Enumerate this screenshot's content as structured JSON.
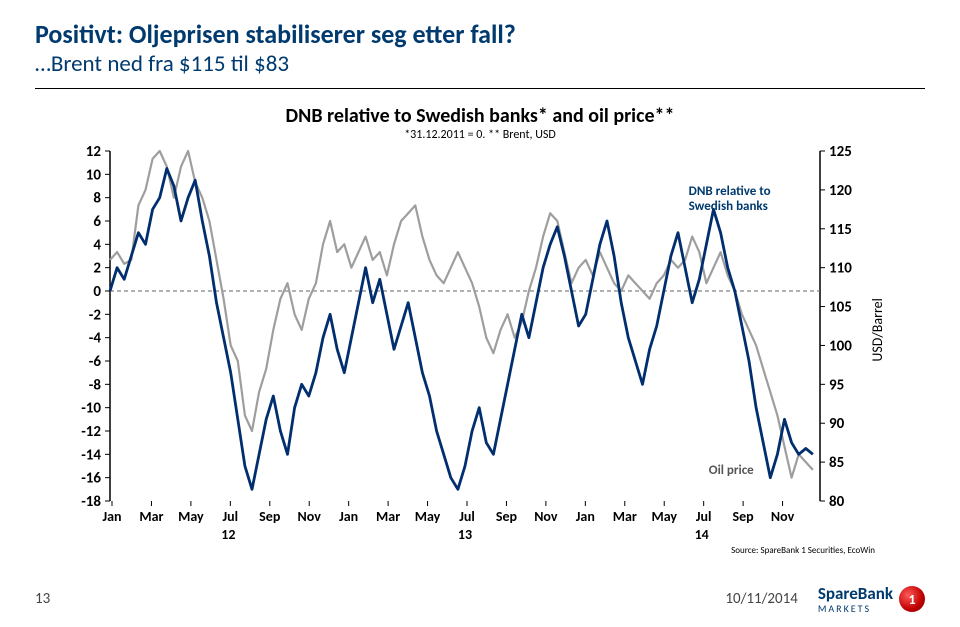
{
  "header": {
    "title": "Positivt: Oljeprisen stabiliserer seg etter fall?",
    "subtitle": "…Brent ned fra $115 til $83"
  },
  "chart": {
    "title": "DNB relative to Swedish banks* and oil price**",
    "subtitle": "*31.12.2011 = 0. ** Brent, USD",
    "left_axis": {
      "min": -18,
      "max": 12,
      "step": 2
    },
    "right_axis": {
      "min": 80,
      "max": 125,
      "step": 5,
      "label": "USD/Barrel"
    },
    "x_ticks": [
      "Jan",
      "Mar",
      "May",
      "Jul",
      "Sep",
      "Nov",
      "Jan",
      "Mar",
      "May",
      "Jul",
      "Sep",
      "Nov",
      "Jan",
      "Mar",
      "May",
      "Jul",
      "Sep",
      "Nov"
    ],
    "year_labels": [
      "12",
      "13",
      "14"
    ],
    "colors": {
      "dnb_line": "#002e6e",
      "oil_line": "#9e9e9e",
      "zero_line": "#666666",
      "axis": "#000000",
      "label_text": "#003a6e",
      "bg": "#ffffff"
    },
    "line_width_dnb": 2.8,
    "line_width_oil": 2.2,
    "labels": {
      "dnb": "DNB relative to Swedish banks",
      "oil": "Oil price"
    },
    "source": "Source: SpareBank 1 Securities, EcoWin",
    "series_oil": [
      [
        0,
        111
      ],
      [
        0.2,
        112
      ],
      [
        0.4,
        110.5
      ],
      [
        0.6,
        111
      ],
      [
        0.8,
        118
      ],
      [
        1,
        120
      ],
      [
        1.2,
        124
      ],
      [
        1.4,
        125
      ],
      [
        1.6,
        123
      ],
      [
        1.8,
        119
      ],
      [
        2,
        123
      ],
      [
        2.2,
        125
      ],
      [
        2.4,
        121
      ],
      [
        2.6,
        119
      ],
      [
        2.8,
        116
      ],
      [
        3,
        111
      ],
      [
        3.2,
        106
      ],
      [
        3.4,
        100
      ],
      [
        3.6,
        98
      ],
      [
        3.8,
        91
      ],
      [
        4,
        89
      ],
      [
        4.2,
        94
      ],
      [
        4.4,
        97
      ],
      [
        4.6,
        102
      ],
      [
        4.8,
        106
      ],
      [
        5,
        108
      ],
      [
        5.2,
        104
      ],
      [
        5.4,
        102
      ],
      [
        5.6,
        106
      ],
      [
        5.8,
        108
      ],
      [
        6,
        113
      ],
      [
        6.2,
        116
      ],
      [
        6.4,
        112
      ],
      [
        6.6,
        113
      ],
      [
        6.8,
        110
      ],
      [
        7,
        112
      ],
      [
        7.2,
        114
      ],
      [
        7.4,
        111
      ],
      [
        7.6,
        112
      ],
      [
        7.8,
        109
      ],
      [
        8,
        113
      ],
      [
        8.2,
        116
      ],
      [
        8.4,
        117
      ],
      [
        8.6,
        118
      ],
      [
        8.8,
        114
      ],
      [
        9,
        111
      ],
      [
        9.2,
        109
      ],
      [
        9.4,
        108
      ],
      [
        9.6,
        110
      ],
      [
        9.8,
        112
      ],
      [
        10,
        110
      ],
      [
        10.2,
        108
      ],
      [
        10.4,
        105
      ],
      [
        10.6,
        101
      ],
      [
        10.8,
        99,
        ""
      ],
      [
        11,
        102
      ],
      [
        11.2,
        104
      ],
      [
        11.4,
        101
      ],
      [
        11.6,
        103
      ],
      [
        11.8,
        107
      ],
      [
        12,
        110
      ],
      [
        12.2,
        114
      ],
      [
        12.4,
        117
      ],
      [
        12.6,
        116
      ],
      [
        12.8,
        112
      ],
      [
        13,
        108
      ],
      [
        13.2,
        110
      ],
      [
        13.4,
        111
      ],
      [
        13.6,
        109
      ],
      [
        13.8,
        112
      ],
      [
        14,
        110
      ],
      [
        14.2,
        108
      ],
      [
        14.4,
        107
      ],
      [
        14.6,
        109
      ],
      [
        14.8,
        108
      ],
      [
        15,
        107
      ],
      [
        15.2,
        106
      ],
      [
        15.4,
        108
      ],
      [
        15.6,
        109
      ],
      [
        15.8,
        111
      ],
      [
        16,
        110
      ],
      [
        16.2,
        111
      ],
      [
        16.4,
        114
      ],
      [
        16.6,
        112
      ],
      [
        16.8,
        108
      ],
      [
        17,
        110
      ],
      [
        17.2,
        112
      ],
      [
        17.4,
        109
      ],
      [
        17.6,
        107
      ],
      [
        17.8,
        104
      ],
      [
        18,
        102
      ],
      [
        18.2,
        100
      ],
      [
        18.4,
        97
      ],
      [
        18.6,
        94
      ],
      [
        18.8,
        91
      ],
      [
        19,
        87
      ],
      [
        19.2,
        83
      ],
      [
        19.4,
        86
      ],
      [
        19.6,
        85
      ],
      [
        19.8,
        84
      ]
    ],
    "series_dnb": [
      [
        0,
        0
      ],
      [
        0.2,
        2
      ],
      [
        0.4,
        1
      ],
      [
        0.6,
        3
      ],
      [
        0.8,
        5
      ],
      [
        1,
        4
      ],
      [
        1.2,
        7
      ],
      [
        1.4,
        8
      ],
      [
        1.6,
        10.5
      ],
      [
        1.8,
        9
      ],
      [
        2,
        6
      ],
      [
        2.2,
        8
      ],
      [
        2.4,
        9.5
      ],
      [
        2.6,
        6
      ],
      [
        2.8,
        3
      ],
      [
        3,
        -1
      ],
      [
        3.2,
        -4
      ],
      [
        3.4,
        -7
      ],
      [
        3.6,
        -11
      ],
      [
        3.8,
        -15
      ],
      [
        4,
        -17
      ],
      [
        4.2,
        -14
      ],
      [
        4.4,
        -11
      ],
      [
        4.6,
        -9
      ],
      [
        4.8,
        -12
      ],
      [
        5,
        -14
      ],
      [
        5.2,
        -10
      ],
      [
        5.4,
        -8
      ],
      [
        5.6,
        -9
      ],
      [
        5.8,
        -7
      ],
      [
        6,
        -4
      ],
      [
        6.2,
        -2
      ],
      [
        6.4,
        -5
      ],
      [
        6.6,
        -7
      ],
      [
        6.8,
        -4
      ],
      [
        7,
        -1
      ],
      [
        7.2,
        2
      ],
      [
        7.4,
        -1
      ],
      [
        7.6,
        1
      ],
      [
        7.8,
        -2
      ],
      [
        8,
        -5
      ],
      [
        8.2,
        -3
      ],
      [
        8.4,
        -1
      ],
      [
        8.6,
        -4
      ],
      [
        8.8,
        -7
      ],
      [
        9,
        -9
      ],
      [
        9.2,
        -12
      ],
      [
        9.4,
        -14
      ],
      [
        9.6,
        -16
      ],
      [
        9.8,
        -17
      ],
      [
        10,
        -15
      ],
      [
        10.2,
        -12
      ],
      [
        10.4,
        -10
      ],
      [
        10.6,
        -13
      ],
      [
        10.8,
        -14
      ],
      [
        11,
        -11
      ],
      [
        11.2,
        -8
      ],
      [
        11.4,
        -5
      ],
      [
        11.6,
        -2
      ],
      [
        11.8,
        -4
      ],
      [
        12,
        -1
      ],
      [
        12.2,
        2
      ],
      [
        12.4,
        4
      ],
      [
        12.6,
        5.5
      ],
      [
        12.8,
        3
      ],
      [
        13,
        0
      ],
      [
        13.2,
        -3
      ],
      [
        13.4,
        -2
      ],
      [
        13.6,
        1
      ],
      [
        13.8,
        4
      ],
      [
        14,
        6
      ],
      [
        14.2,
        3
      ],
      [
        14.4,
        -1
      ],
      [
        14.6,
        -4
      ],
      [
        14.8,
        -6
      ],
      [
        15,
        -8
      ],
      [
        15.2,
        -5
      ],
      [
        15.4,
        -3
      ],
      [
        15.6,
        0
      ],
      [
        15.8,
        3
      ],
      [
        16,
        5
      ],
      [
        16.2,
        2
      ],
      [
        16.4,
        -1
      ],
      [
        16.6,
        1
      ],
      [
        16.8,
        4
      ],
      [
        17,
        7
      ],
      [
        17.2,
        5
      ],
      [
        17.4,
        2
      ],
      [
        17.6,
        0
      ],
      [
        17.8,
        -3
      ],
      [
        18,
        -6
      ],
      [
        18.2,
        -10
      ],
      [
        18.4,
        -13
      ],
      [
        18.6,
        -16
      ],
      [
        18.8,
        -14
      ],
      [
        19,
        -11
      ],
      [
        19.2,
        -13
      ],
      [
        19.4,
        -14
      ],
      [
        19.6,
        -13.5
      ],
      [
        19.8,
        -14
      ]
    ]
  },
  "footer": {
    "page": "13",
    "date": "10/11/2014",
    "logo_main": "SpareBank",
    "logo_sub": "MARKETS",
    "logo_num": "1"
  }
}
